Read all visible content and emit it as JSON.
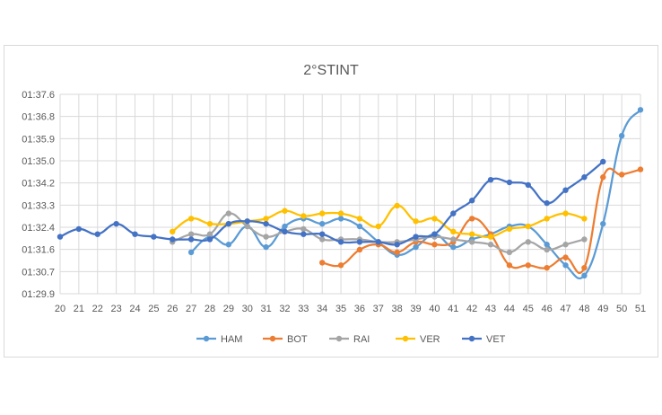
{
  "chart_data": {
    "type": "line",
    "title": "2°STINT",
    "xlabel": "",
    "ylabel": "",
    "categories": [
      20,
      21,
      22,
      23,
      24,
      25,
      26,
      27,
      28,
      29,
      30,
      31,
      32,
      33,
      34,
      35,
      36,
      37,
      38,
      39,
      40,
      41,
      42,
      43,
      44,
      45,
      46,
      47,
      48,
      49,
      50,
      51
    ],
    "y_ticks": [
      "01:37.6",
      "01:36.8",
      "01:35.9",
      "01:35.0",
      "01:34.2",
      "01:33.3",
      "01:32.4",
      "01:31.6",
      "01:30.7",
      "01:29.9"
    ],
    "ylim_seconds": [
      89.9,
      97.6
    ],
    "grid": true,
    "legend_position": "bottom",
    "series": [
      {
        "name": "HAM",
        "color": "#5b9bd5",
        "x": [
          27,
          28,
          29,
          30,
          31,
          32,
          33,
          34,
          35,
          36,
          37,
          38,
          39,
          40,
          41,
          42,
          43,
          44,
          45,
          46,
          47,
          48,
          49,
          50,
          51
        ],
        "y": [
          91.5,
          92.1,
          91.8,
          92.5,
          91.7,
          92.5,
          92.8,
          92.6,
          92.8,
          92.5,
          91.9,
          91.4,
          91.7,
          92.2,
          91.7,
          92.0,
          92.2,
          92.5,
          92.5,
          91.8,
          91.0,
          90.6,
          92.6,
          96.0,
          97.0
        ]
      },
      {
        "name": "BOT",
        "color": "#ed7d31",
        "x": [
          34,
          35,
          36,
          37,
          38,
          39,
          40,
          41,
          42,
          43,
          44,
          45,
          46,
          47,
          48,
          49,
          50,
          51
        ],
        "y": [
          91.1,
          91.0,
          91.6,
          91.8,
          91.5,
          91.9,
          91.8,
          91.9,
          92.8,
          92.2,
          91.0,
          91.0,
          90.9,
          91.3,
          90.9,
          94.4,
          94.5,
          94.7
        ]
      },
      {
        "name": "RAI",
        "color": "#a5a5a5",
        "x": [
          26,
          27,
          28,
          29,
          30,
          31,
          32,
          33,
          34,
          35,
          36,
          37,
          38,
          39,
          40,
          41,
          42,
          43,
          44,
          45,
          46,
          47,
          48
        ],
        "y": [
          91.9,
          92.2,
          92.2,
          93.0,
          92.5,
          92.1,
          92.3,
          92.4,
          92.0,
          92.0,
          92.0,
          91.9,
          91.9,
          92.0,
          92.1,
          92.0,
          91.9,
          91.8,
          91.5,
          91.9,
          91.6,
          91.8,
          92.0
        ]
      },
      {
        "name": "VER",
        "color": "#ffc000",
        "x": [
          26,
          27,
          28,
          29,
          30,
          31,
          32,
          33,
          34,
          35,
          36,
          37,
          38,
          39,
          40,
          41,
          42,
          43,
          44,
          45,
          46,
          47,
          48
        ],
        "y": [
          92.3,
          92.8,
          92.6,
          92.6,
          92.7,
          92.8,
          93.1,
          92.9,
          93.0,
          93.0,
          92.8,
          92.5,
          93.3,
          92.7,
          92.8,
          92.3,
          92.2,
          92.1,
          92.4,
          92.5,
          92.8,
          93.0,
          92.8
        ]
      },
      {
        "name": "VET",
        "color": "#4472c4",
        "x": [
          20,
          21,
          22,
          23,
          24,
          25,
          26,
          27,
          28,
          29,
          30,
          31,
          32,
          33,
          34,
          35,
          36,
          37,
          38,
          39,
          40,
          41,
          42,
          43,
          44,
          45,
          46,
          47,
          48,
          49
        ],
        "y": [
          92.1,
          92.4,
          92.2,
          92.6,
          92.2,
          92.1,
          92.0,
          92.0,
          92.0,
          92.6,
          92.7,
          92.6,
          92.3,
          92.2,
          92.2,
          91.9,
          91.9,
          91.9,
          91.8,
          92.1,
          92.2,
          93.0,
          93.5,
          94.3,
          94.2,
          94.1,
          93.4,
          93.9,
          94.4,
          95.0
        ]
      }
    ]
  }
}
